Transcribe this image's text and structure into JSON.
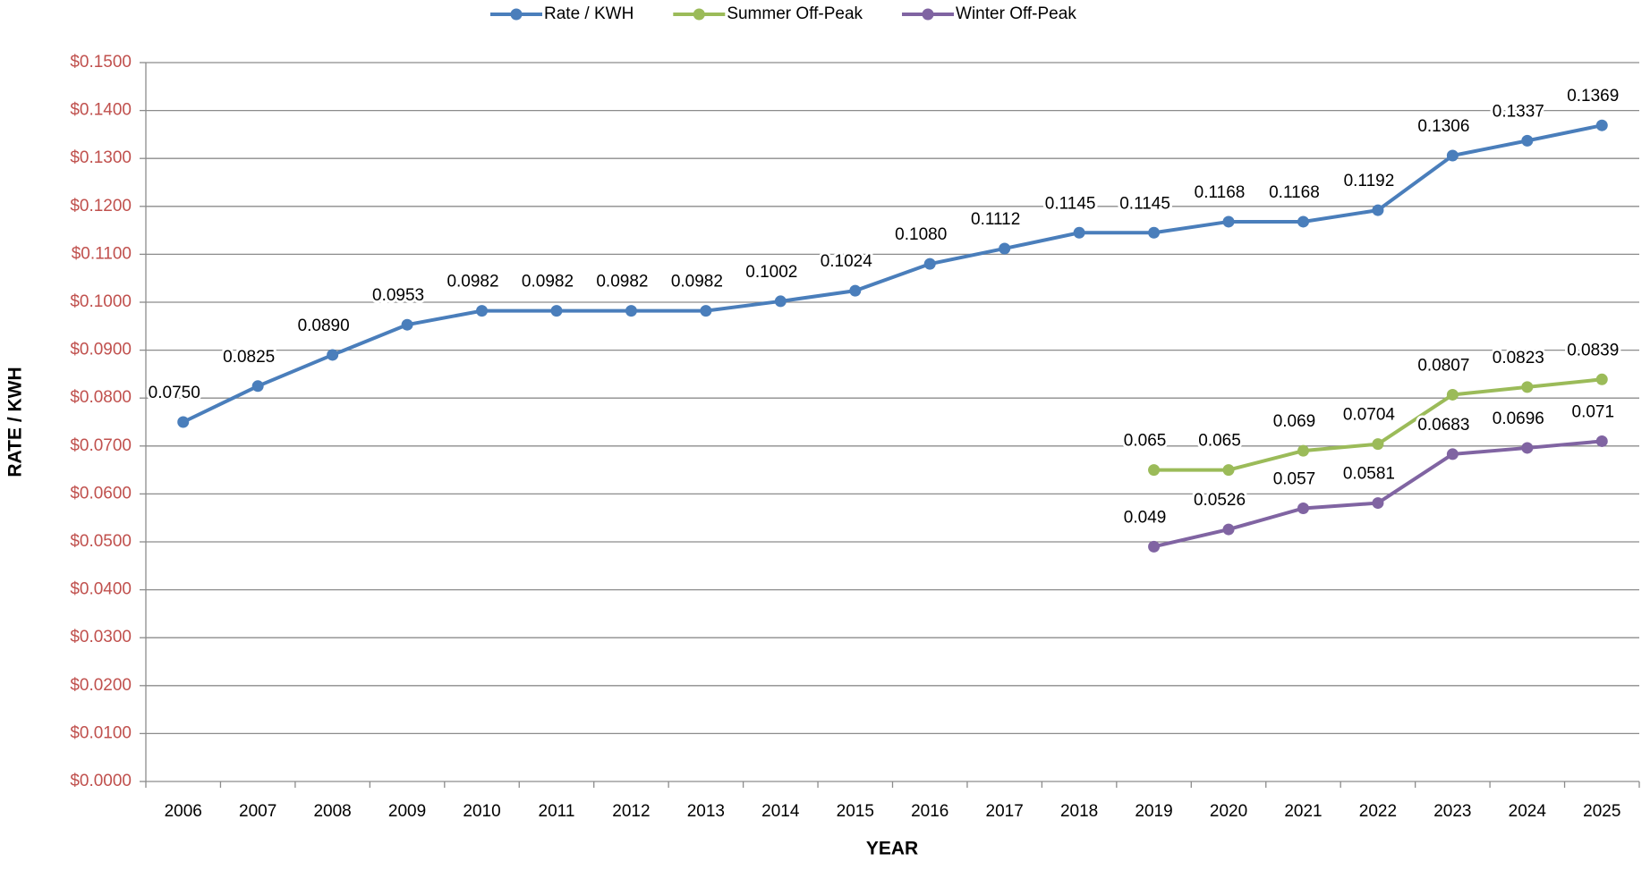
{
  "chart_data": {
    "type": "line",
    "x_label": "YEAR",
    "y_label": "RATE / KWH",
    "categories": [
      "2006",
      "2007",
      "2008",
      "2009",
      "2010",
      "2011",
      "2012",
      "2013",
      "2014",
      "2015",
      "2016",
      "2017",
      "2018",
      "2019",
      "2020",
      "2021",
      "2022",
      "2023",
      "2024",
      "2025"
    ],
    "series": [
      {
        "name": "Rate / KWH",
        "color": "#4a7ebb",
        "values": [
          0.075,
          0.0825,
          0.089,
          0.0953,
          0.0982,
          0.0982,
          0.0982,
          0.0982,
          0.1002,
          0.1024,
          0.108,
          0.1112,
          0.1145,
          0.1145,
          0.1168,
          0.1168,
          0.1192,
          0.1306,
          0.1337,
          0.1369
        ],
        "value_labels": [
          "0.0750",
          "0.0825",
          "0.0890",
          "0.0953",
          "0.0982",
          "0.0982",
          "0.0982",
          "0.0982",
          "0.1002",
          "0.1024",
          "0.1080",
          "0.1112",
          "0.1145",
          "0.1145",
          "0.1168",
          "0.1168",
          "0.1192",
          "0.1306",
          "0.1337",
          "0.1369"
        ]
      },
      {
        "name": "Summer Off-Peak",
        "color": "#9bbb59",
        "values": [
          null,
          null,
          null,
          null,
          null,
          null,
          null,
          null,
          null,
          null,
          null,
          null,
          null,
          0.065,
          0.065,
          0.069,
          0.0704,
          0.0807,
          0.0823,
          0.0839
        ],
        "value_labels": [
          null,
          null,
          null,
          null,
          null,
          null,
          null,
          null,
          null,
          null,
          null,
          null,
          null,
          "0.065",
          "0.065",
          "0.069",
          "0.0704",
          "0.0807",
          "0.0823",
          "0.0839"
        ]
      },
      {
        "name": "Winter Off-Peak",
        "color": "#8064a2",
        "values": [
          null,
          null,
          null,
          null,
          null,
          null,
          null,
          null,
          null,
          null,
          null,
          null,
          null,
          0.049,
          0.0526,
          0.057,
          0.0581,
          0.0683,
          0.0696,
          0.071
        ],
        "value_labels": [
          null,
          null,
          null,
          null,
          null,
          null,
          null,
          null,
          null,
          null,
          null,
          null,
          null,
          "0.049",
          "0.0526",
          "0.057",
          "0.0581",
          "0.0683",
          "0.0696",
          "0.071"
        ]
      }
    ],
    "ylim": [
      0,
      0.15
    ],
    "yticks": [
      {
        "value": 0,
        "label": "$0.0000"
      },
      {
        "value": 0.01,
        "label": "$0.0100"
      },
      {
        "value": 0.02,
        "label": "$0.0200"
      },
      {
        "value": 0.03,
        "label": "$0.0300"
      },
      {
        "value": 0.04,
        "label": "$0.0400"
      },
      {
        "value": 0.05,
        "label": "$0.0500"
      },
      {
        "value": 0.06,
        "label": "$0.0600"
      },
      {
        "value": 0.07,
        "label": "$0.0700"
      },
      {
        "value": 0.08,
        "label": "$0.0800"
      },
      {
        "value": 0.09,
        "label": "$0.0900"
      },
      {
        "value": 0.1,
        "label": "$0.1000"
      },
      {
        "value": 0.11,
        "label": "$0.1100"
      },
      {
        "value": 0.12,
        "label": "$0.1200"
      },
      {
        "value": 0.13,
        "label": "$0.1300"
      },
      {
        "value": 0.14,
        "label": "$0.1400"
      },
      {
        "value": 0.15,
        "label": "$0.1500"
      }
    ],
    "grid": true,
    "legend": "top"
  }
}
